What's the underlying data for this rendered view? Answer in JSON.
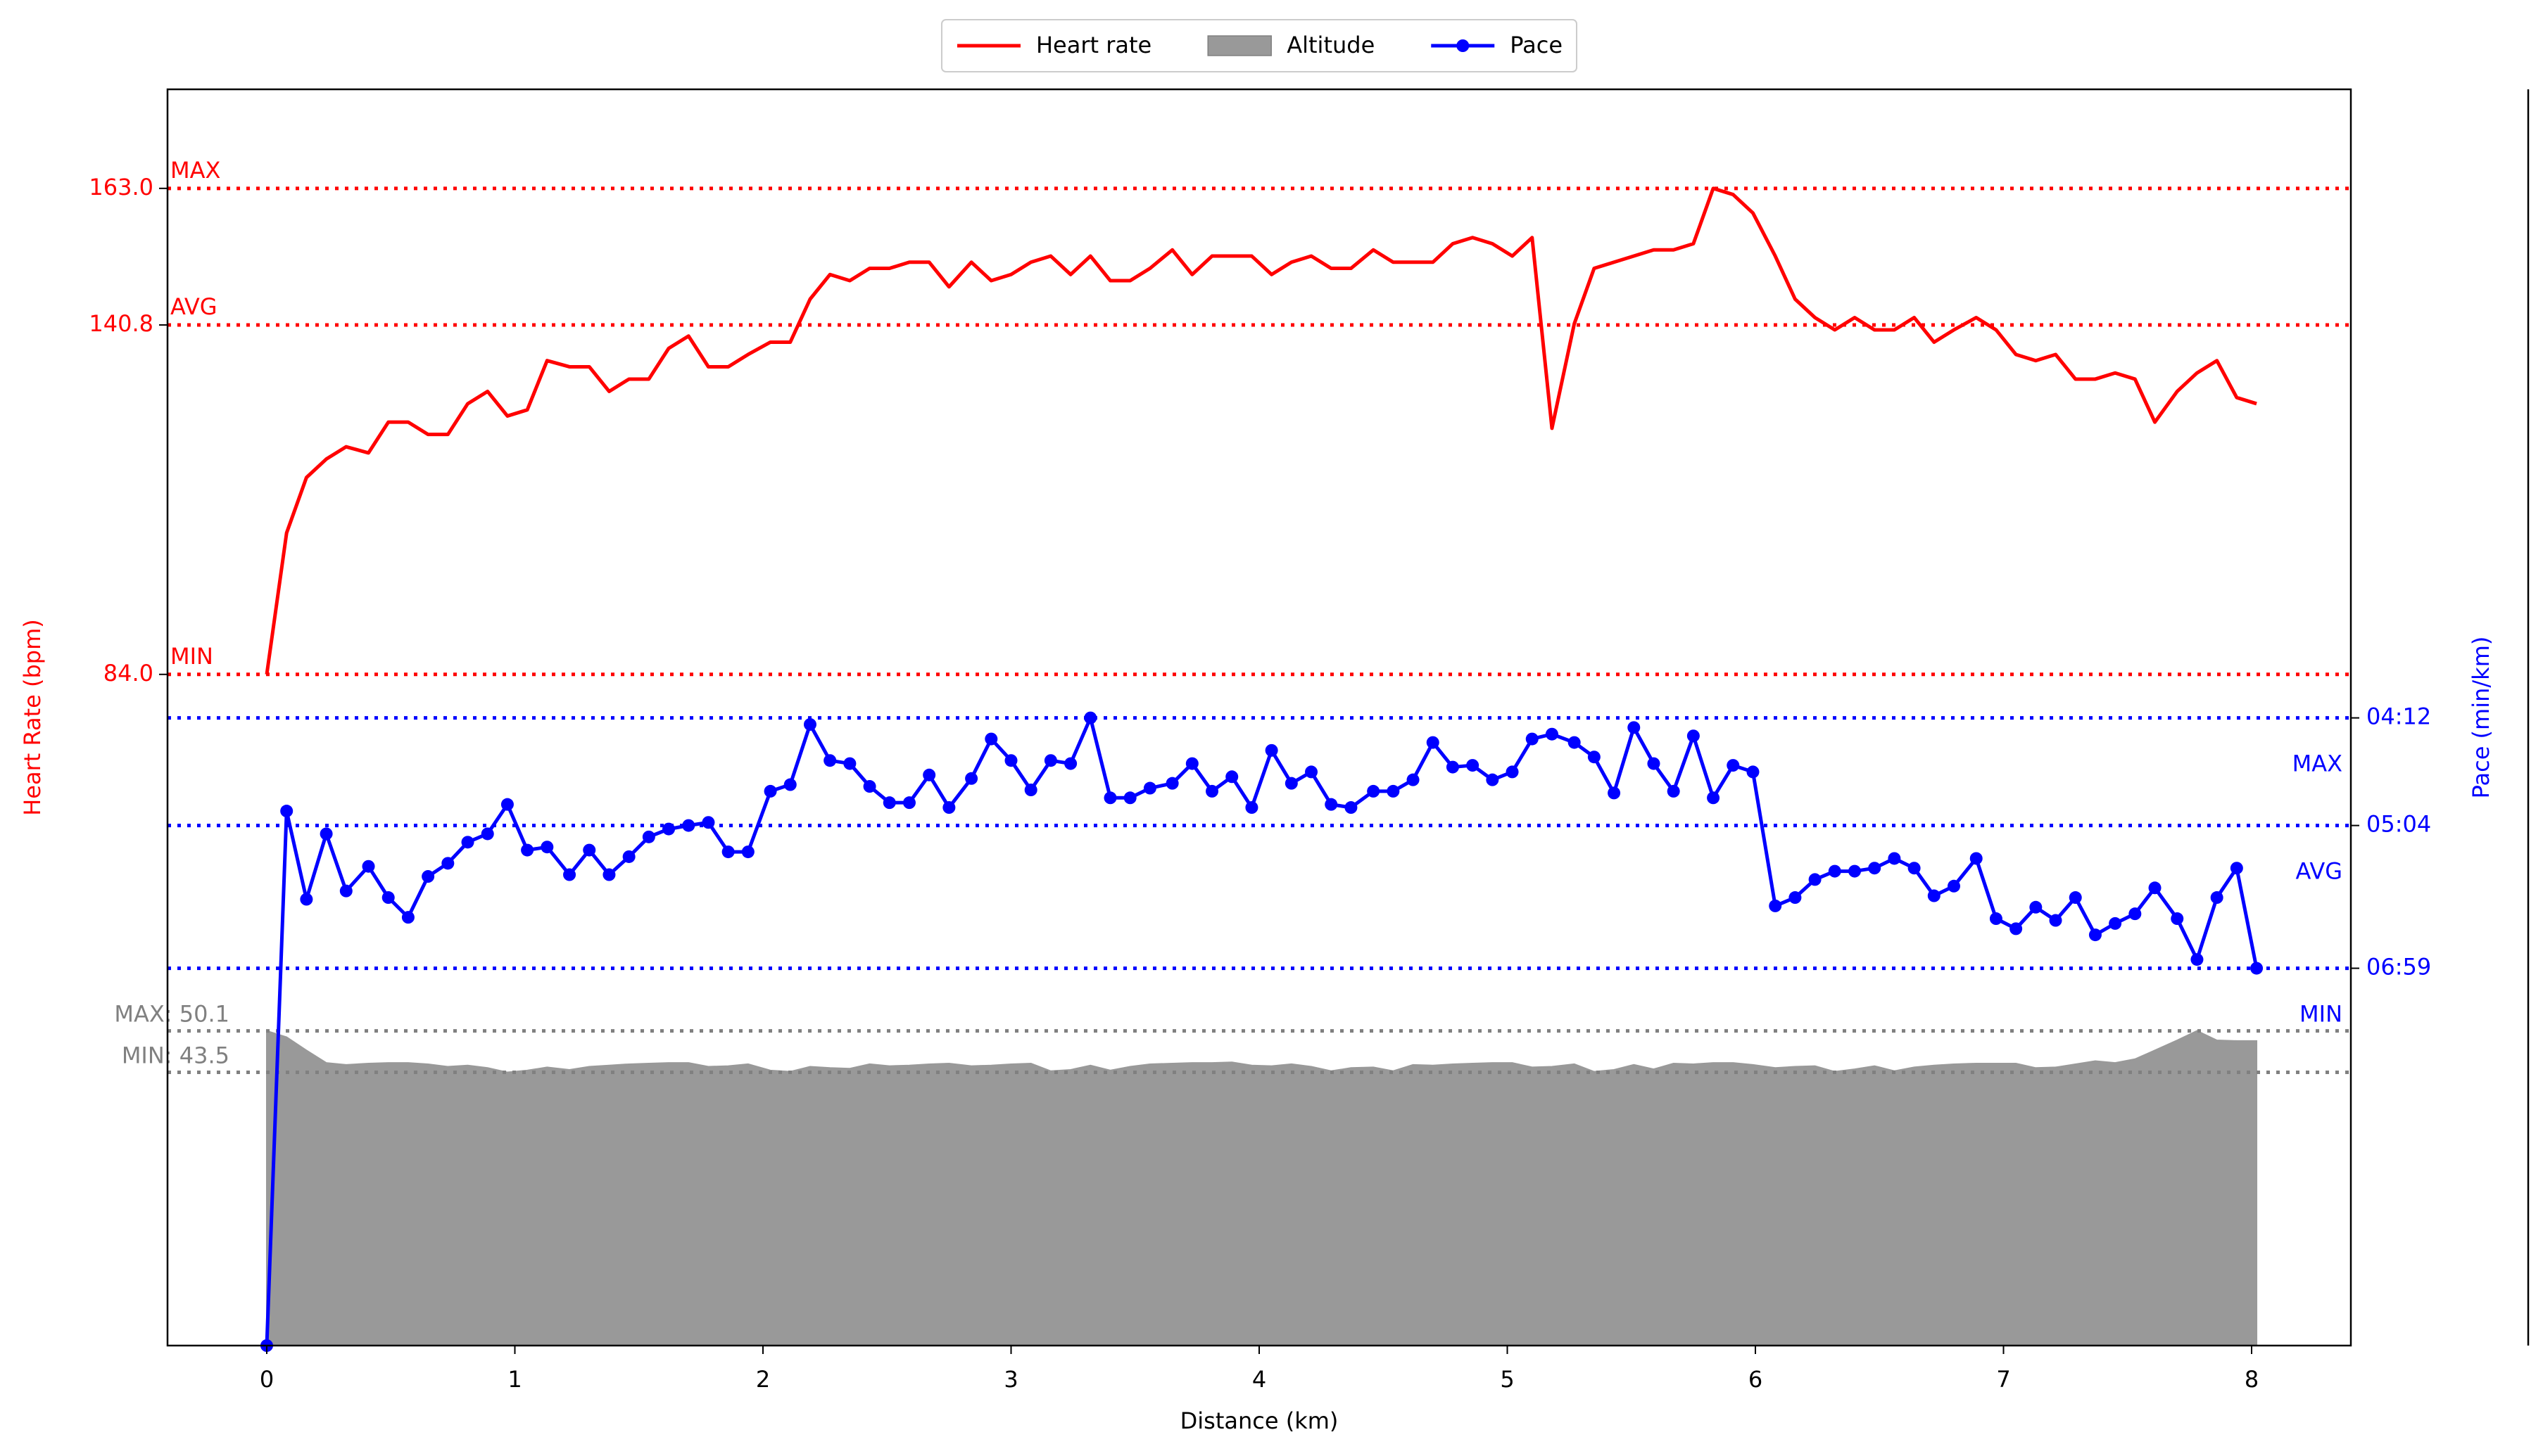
{
  "chart_data": {
    "type": "line",
    "x_label": "Distance (km)",
    "y_label": "Heart Rate (bpm)",
    "y2_label": "Pace (min/km)",
    "legend": "top",
    "grid": false,
    "x": [
      0,
      0.08,
      0.16,
      0.24,
      0.32,
      0.41,
      0.49,
      0.57,
      0.65,
      0.73,
      0.81,
      0.89,
      0.97,
      1.05,
      1.13,
      1.22,
      1.3,
      1.38,
      1.46,
      1.54,
      1.62,
      1.7,
      1.78,
      1.86,
      1.94,
      2.03,
      2.11,
      2.19,
      2.27,
      2.35,
      2.43,
      2.51,
      2.59,
      2.67,
      2.75,
      2.84,
      2.92,
      3.0,
      3.08,
      3.16,
      3.24,
      3.32,
      3.4,
      3.48,
      3.56,
      3.65,
      3.73,
      3.81,
      3.89,
      3.97,
      4.05,
      4.13,
      4.21,
      4.29,
      4.37,
      4.46,
      4.54,
      4.62,
      4.7,
      4.78,
      4.86,
      4.94,
      5.02,
      5.1,
      5.18,
      5.27,
      5.35,
      5.43,
      5.51,
      5.59,
      5.67,
      5.75,
      5.83,
      5.91,
      5.99,
      6.08,
      6.16,
      6.24,
      6.32,
      6.4,
      6.48,
      6.56,
      6.64,
      6.72,
      6.8,
      6.89,
      6.97,
      7.05,
      7.13,
      7.21,
      7.29,
      7.37,
      7.45,
      7.53,
      7.61,
      7.7,
      7.78,
      7.86,
      7.94,
      8.02
    ],
    "xlim": [
      -0.4,
      8.4
    ],
    "xticks": [
      0,
      1,
      2,
      3,
      4,
      5,
      6,
      7,
      8
    ],
    "ylim": [
      -25.1,
      179.1
    ],
    "yticks": [
      {
        "value": 84,
        "label": "84.0"
      },
      {
        "value": 140.8,
        "label": "140.8"
      },
      {
        "value": 163,
        "label": "163.0"
      }
    ],
    "y2lim": [
      0,
      28.6
    ],
    "y2ticks": [
      {
        "value": 14.29,
        "label": "04:12"
      },
      {
        "value": 11.84,
        "label": "05:04"
      },
      {
        "value": 8.59,
        "label": "06:59"
      }
    ],
    "y3lim": [
      0,
      200
    ],
    "series": [
      {
        "name": "Heart rate",
        "type": "line",
        "color": "#ff0000",
        "values": [
          84,
          107,
          116,
          119,
          121,
          120,
          125,
          125,
          123,
          123,
          128,
          130,
          126,
          127,
          135,
          134,
          134,
          130,
          132,
          132,
          137,
          139,
          134,
          134,
          136,
          138,
          138,
          145,
          149,
          148,
          150,
          150,
          151,
          151,
          147,
          151,
          148,
          149,
          151,
          152,
          149,
          152,
          148,
          148,
          150,
          153,
          149,
          152,
          152,
          152,
          149,
          151,
          152,
          150,
          150,
          153,
          151,
          151,
          151,
          154,
          155,
          154,
          152,
          155,
          124,
          141,
          150,
          151,
          152,
          153,
          153,
          154,
          163,
          162,
          159,
          152,
          145,
          142,
          140,
          142,
          140,
          140,
          142,
          138,
          140,
          142,
          140,
          136,
          135,
          136,
          132,
          132,
          133,
          132,
          125,
          130,
          133,
          135,
          129,
          128
        ]
      },
      {
        "name": "Altitude",
        "type": "area",
        "axis": "y3",
        "color": "#999999",
        "values": [
          50.1,
          49.1,
          47.0,
          45.0,
          44.7,
          44.9,
          45.0,
          45.0,
          44.8,
          44.4,
          44.6,
          44.2,
          43.5,
          43.8,
          44.3,
          43.9,
          44.4,
          44.6,
          44.8,
          44.9,
          45.0,
          45.0,
          44.4,
          44.5,
          44.8,
          43.8,
          43.6,
          44.4,
          44.2,
          44.1,
          44.8,
          44.5,
          44.6,
          44.8,
          44.9,
          44.5,
          44.6,
          44.8,
          44.9,
          43.7,
          43.9,
          44.6,
          43.8,
          44.4,
          44.8,
          44.9,
          45.0,
          45.0,
          45.1,
          44.6,
          44.5,
          44.8,
          44.4,
          43.7,
          44.2,
          44.3,
          43.7,
          44.7,
          44.6,
          44.8,
          44.9,
          45.0,
          45.0,
          44.3,
          44.4,
          44.8,
          43.6,
          43.9,
          44.7,
          44.0,
          44.9,
          44.8,
          45.0,
          45.0,
          44.7,
          44.2,
          44.4,
          44.5,
          43.6,
          44.0,
          44.5,
          43.7,
          44.3,
          44.6,
          44.8,
          44.9,
          44.9,
          44.9,
          44.2,
          44.3,
          44.8,
          45.3,
          45.0,
          45.6,
          47.0,
          48.6,
          50.1,
          48.6,
          48.5,
          48.5
        ]
      },
      {
        "name": "Pace",
        "type": "line",
        "marker": true,
        "axis": "y2",
        "color": "#0000ff",
        "values": [
          0,
          12.17,
          10.16,
          11.65,
          10.35,
          10.91,
          10.2,
          9.75,
          10.68,
          10.98,
          11.46,
          11.65,
          12.32,
          11.28,
          11.35,
          10.72,
          11.28,
          10.72,
          11.13,
          11.58,
          11.76,
          11.84,
          11.91,
          11.24,
          11.24,
          12.62,
          12.77,
          14.14,
          13.32,
          13.25,
          12.73,
          12.36,
          12.36,
          12.99,
          12.25,
          12.91,
          13.81,
          13.32,
          12.65,
          13.32,
          13.25,
          14.29,
          12.47,
          12.47,
          12.69,
          12.8,
          13.25,
          12.62,
          12.95,
          12.25,
          13.55,
          12.8,
          13.06,
          12.32,
          12.25,
          12.62,
          12.62,
          12.88,
          13.73,
          13.17,
          13.21,
          12.88,
          13.06,
          13.81,
          13.92,
          13.73,
          13.4,
          12.58,
          14.07,
          13.25,
          12.62,
          13.88,
          12.47,
          13.21,
          13.06,
          10.01,
          10.2,
          10.61,
          10.8,
          10.8,
          10.87,
          11.09,
          10.87,
          10.24,
          10.46,
          11.09,
          9.72,
          9.49,
          9.98,
          9.68,
          10.2,
          9.35,
          9.61,
          9.83,
          10.42,
          9.72,
          8.79,
          10.2,
          10.87,
          8.59
        ]
      }
    ],
    "reference_lines": [
      {
        "axis": "y",
        "label": "MAX",
        "value": 163,
        "color": "#ff0000"
      },
      {
        "axis": "y",
        "label": "AVG",
        "value": 140.8,
        "color": "#ff0000"
      },
      {
        "axis": "y",
        "label": "MIN",
        "value": 84,
        "color": "#ff0000"
      },
      {
        "axis": "y2",
        "label": "MAX",
        "value": 14.29,
        "color": "#0000ff"
      },
      {
        "axis": "y2",
        "label": "AVG",
        "value": 11.84,
        "color": "#0000ff"
      },
      {
        "axis": "y2",
        "label": "MIN",
        "value": 8.59,
        "color": "#0000ff"
      },
      {
        "axis": "y3",
        "label": "MAX: 50.1",
        "value": 50.1,
        "color": "#808080"
      },
      {
        "axis": "y3",
        "label": "MIN: 43.5",
        "value": 43.5,
        "color": "#808080"
      }
    ]
  }
}
